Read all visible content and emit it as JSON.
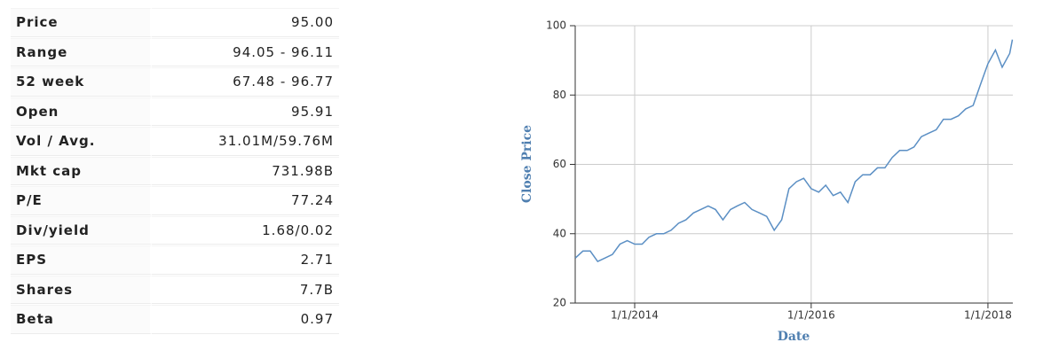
{
  "table": {
    "rows": [
      [
        "Price",
        "95.00"
      ],
      [
        "Range",
        "94.05 - 96.11"
      ],
      [
        "52 week",
        "67.48 - 96.77"
      ],
      [
        "Open",
        "95.91"
      ],
      [
        "Vol / Avg.",
        "31.01M/59.76M"
      ],
      [
        "Mkt cap",
        "731.98B"
      ],
      [
        "P/E",
        "77.24"
      ],
      [
        "Div/yield",
        "1.68/0.02"
      ],
      [
        "EPS",
        "2.71"
      ],
      [
        "Shares",
        "7.7B"
      ],
      [
        "Beta",
        "0.97"
      ]
    ]
  },
  "chart_data": {
    "type": "line",
    "x_label": "Date",
    "y_label": "Close Price",
    "xlim": [
      "2013-04-30",
      "2018-04-14"
    ],
    "xticks": [
      {
        "value": "2014-01-01",
        "label": "1/1/2014"
      },
      {
        "value": "2016-01-01",
        "label": "1/1/2016"
      },
      {
        "value": "2018-01-01",
        "label": "1/1/2018"
      }
    ],
    "ylim": [
      20,
      100
    ],
    "yticks": [
      20,
      40,
      60,
      80,
      100
    ],
    "grid": true,
    "series": [
      {
        "name": "Close Price",
        "color": "#5b8fc4",
        "x": [
          "2013-05-01",
          "2013-06-01",
          "2013-07-01",
          "2013-08-01",
          "2013-09-01",
          "2013-10-01",
          "2013-11-01",
          "2013-12-01",
          "2014-01-01",
          "2014-02-01",
          "2014-03-01",
          "2014-04-01",
          "2014-05-01",
          "2014-06-01",
          "2014-07-01",
          "2014-08-01",
          "2014-09-01",
          "2014-10-01",
          "2014-11-01",
          "2014-12-01",
          "2015-01-01",
          "2015-02-01",
          "2015-03-01",
          "2015-04-01",
          "2015-05-01",
          "2015-06-01",
          "2015-07-01",
          "2015-08-01",
          "2015-09-01",
          "2015-10-01",
          "2015-11-01",
          "2015-12-01",
          "2016-01-01",
          "2016-02-01",
          "2016-03-01",
          "2016-04-01",
          "2016-05-01",
          "2016-06-01",
          "2016-07-01",
          "2016-08-01",
          "2016-09-01",
          "2016-10-01",
          "2016-11-01",
          "2016-12-01",
          "2017-01-01",
          "2017-02-01",
          "2017-03-01",
          "2017-04-01",
          "2017-05-01",
          "2017-06-01",
          "2017-07-01",
          "2017-08-01",
          "2017-09-01",
          "2017-10-01",
          "2017-11-01",
          "2017-12-01",
          "2018-01-01",
          "2018-02-01",
          "2018-03-01",
          "2018-04-01",
          "2018-04-12"
        ],
        "values": [
          33,
          35,
          35,
          32,
          33,
          34,
          37,
          38,
          37,
          37,
          39,
          40,
          40,
          41,
          43,
          44,
          46,
          47,
          48,
          47,
          44,
          47,
          48,
          49,
          47,
          46,
          45,
          41,
          44,
          53,
          55,
          56,
          53,
          52,
          54,
          51,
          52,
          49,
          55,
          57,
          57,
          59,
          59,
          62,
          64,
          64,
          65,
          68,
          69,
          70,
          73,
          73,
          74,
          76,
          77,
          83,
          89,
          93,
          88,
          92,
          96
        ]
      }
    ]
  }
}
